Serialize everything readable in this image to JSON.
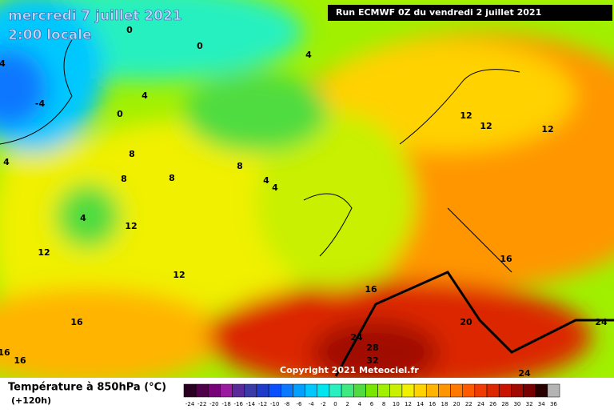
{
  "header": {
    "date": "mercredi 7 juillet 2021",
    "time": "2:00 locale",
    "run": "Run ECMWF 0Z du vendredi 2 juillet 2021"
  },
  "copyright": "Copyright 2021 Meteociel.fr",
  "legend": {
    "title": "Température à 850hPa (°C)",
    "lead": "(+120h)",
    "ticks": [
      -24,
      -22,
      -20,
      -18,
      -16,
      -14,
      -12,
      -10,
      -8,
      -6,
      -4,
      -2,
      0,
      2,
      4,
      6,
      8,
      10,
      12,
      14,
      16,
      18,
      20,
      22,
      24,
      26,
      28,
      30,
      32,
      34,
      36
    ],
    "colors": [
      "#2a0022",
      "#4e0048",
      "#780078",
      "#9a1aa0",
      "#5a2a9a",
      "#3a3aa8",
      "#1e3cc8",
      "#0a50ff",
      "#0a78ff",
      "#00a0ff",
      "#00c8ff",
      "#00e6f0",
      "#28f0c0",
      "#40e880",
      "#50dc40",
      "#78e600",
      "#a0f000",
      "#c8f000",
      "#f0f000",
      "#ffd200",
      "#ffb400",
      "#ff9600",
      "#ff7800",
      "#ff5a00",
      "#f03c00",
      "#dc2800",
      "#c81400",
      "#a00a00",
      "#780000",
      "#280000",
      "#b4b4b4"
    ]
  },
  "map": {
    "labels": [
      "0",
      "0",
      "0",
      "4",
      "4",
      "-4",
      "4",
      "8",
      "8",
      "8",
      "8",
      "4",
      "4",
      "4",
      "12",
      "12",
      "12",
      "12",
      "12",
      "12",
      "16",
      "16",
      "16",
      "16",
      "16",
      "20",
      "24",
      "24",
      "28",
      "32",
      "24",
      "4"
    ]
  }
}
